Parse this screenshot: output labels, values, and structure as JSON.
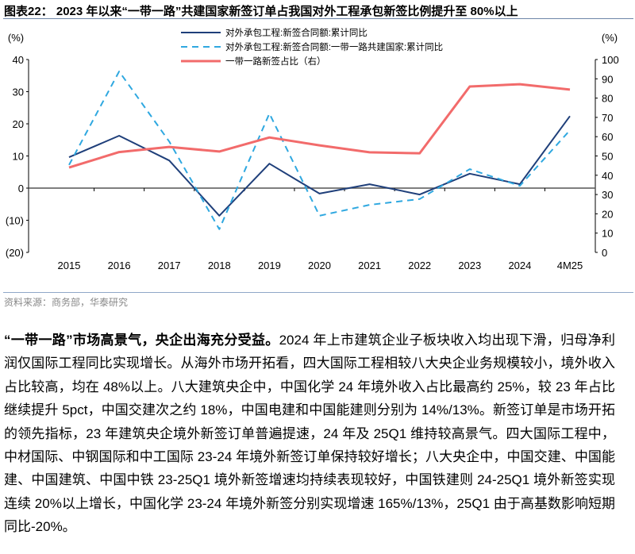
{
  "title": "图表22：  2023 年以来“一带一路”共建国家新签订单占我国对外工程承包新签比例提升至 80%以上",
  "source": "资料来源：商务部，华泰研究",
  "paragraph": {
    "lead": "“一带一路”市场高景气，央企出海充分受益。",
    "body": "2024 年上市建筑企业子板块收入均出现下滑，归母净利润仅国际工程同比实现增长。从海外市场开拓看，四大国际工程相较八大央企业务规模较小，境外收入占比较高，均在 48%以上。八大建筑央企中，中国化学 24 年境外收入占比最高约 25%，较 23 年占比继续提升 5pct，中国交建次之约 18%，中国电建和中国能建则分别为 14%/13%。新签订单是市场开拓的领先指标，23 年建筑央企境外新签订单普遍提速，24 年及 25Q1 维持较高景气。四大国际工程中，中材国际、中钢国际和中工国际 23-24 年境外新签订单保持较好增长；八大央企中，中国交建、中国能建、中国建筑、中国中铁 23-25Q1 境外新签增速均持续表现较好，中国铁建则 24-25Q1 境外新签实现连续 20%以上增长，中国化学 23-24 年境外新签分别实现增速 165%/13%，25Q1 由于高基数影响短期同比-20%。"
  },
  "chart_data": {
    "type": "line",
    "title": "",
    "categories": [
      "2015",
      "2016",
      "2017",
      "2018",
      "2019",
      "2020",
      "2021",
      "2022",
      "2023",
      "2024",
      "4M25"
    ],
    "ylabel_left": "(%)",
    "ylabel_right": "(%)",
    "ylim_left": [
      -20,
      40
    ],
    "yticks_left": [
      {
        "v": 40,
        "label": "40"
      },
      {
        "v": 30,
        "label": "30"
      },
      {
        "v": 20,
        "label": "20"
      },
      {
        "v": 10,
        "label": "10"
      },
      {
        "v": 0,
        "label": "0"
      },
      {
        "v": -10,
        "label": "(10)"
      },
      {
        "v": -20,
        "label": "(20)"
      }
    ],
    "ylim_right": [
      0,
      100
    ],
    "yticks_right": [
      "0",
      "10",
      "20",
      "30",
      "40",
      "50",
      "60",
      "70",
      "80",
      "90",
      "100"
    ],
    "legend_position": "top-center",
    "series": [
      {
        "name": "对外承包工程:新签合同额:累计同比",
        "axis": "left",
        "color": "#1f3f7a",
        "style": "solid",
        "values": [
          9.6,
          16.3,
          8.6,
          -8.6,
          7.6,
          -1.7,
          1.2,
          -2.0,
          4.5,
          1.2,
          22.4
        ]
      },
      {
        "name": "对外承包工程:新签合同额:一带一路共建国家:累计同比",
        "axis": "left",
        "color": "#2fa8e0",
        "style": "dashed",
        "values": [
          7.2,
          36.3,
          14.5,
          -12.8,
          23.2,
          -8.6,
          -5.2,
          -3.4,
          5.9,
          0.7,
          18.0
        ]
      },
      {
        "name": "一带一路新签占比（右）",
        "axis": "right",
        "color": "#f26b6b",
        "style": "solid",
        "values": [
          44.0,
          52.0,
          54.7,
          52.3,
          59.6,
          55.5,
          51.9,
          51.4,
          86.0,
          87.2,
          84.4
        ]
      }
    ]
  }
}
